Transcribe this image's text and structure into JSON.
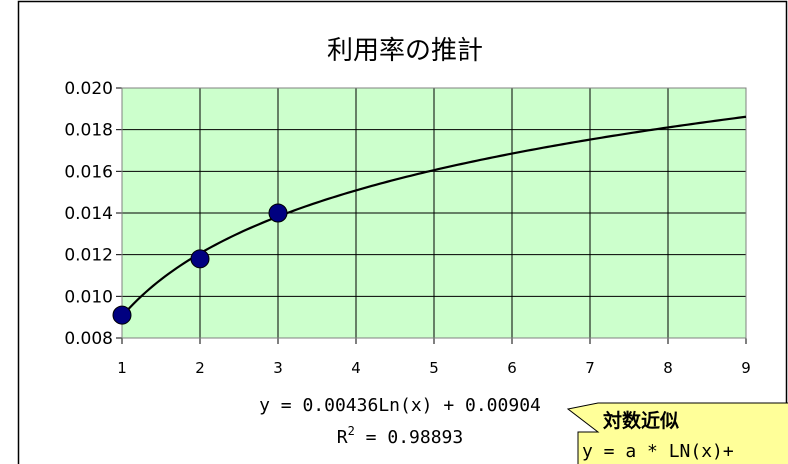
{
  "chart_data": {
    "type": "scatter",
    "title": "利用率の推計",
    "xlabel": "",
    "ylabel": "",
    "xlim": [
      1,
      9
    ],
    "ylim": [
      0.008,
      0.02
    ],
    "x_ticks": [
      "1",
      "2",
      "3",
      "4",
      "5",
      "6",
      "7",
      "8",
      "9"
    ],
    "y_ticks": [
      "0.008",
      "0.010",
      "0.012",
      "0.014",
      "0.016",
      "0.018",
      "0.020"
    ],
    "grid": true,
    "series": [
      {
        "kind": "points",
        "x": [
          1,
          2,
          3
        ],
        "y": [
          0.0091,
          0.0118,
          0.014
        ]
      },
      {
        "kind": "trendline",
        "fit": "logarithmic",
        "a": 0.00436,
        "b": 0.00904,
        "x_range": [
          1,
          9
        ]
      }
    ],
    "annotations": {
      "equation": "y = 0.00436Ln(x) + 0.00904",
      "r2_prefix": "R",
      "r2_sup": "2",
      "r2_value": " = 0.98893"
    }
  },
  "callout": {
    "title": "対数近似",
    "formula": "y = a  * LN(x)+"
  },
  "colors": {
    "plot_bg": "#ccffcc",
    "marker": "#000080",
    "line": "#000000",
    "callout_bg": "#ffff99"
  }
}
